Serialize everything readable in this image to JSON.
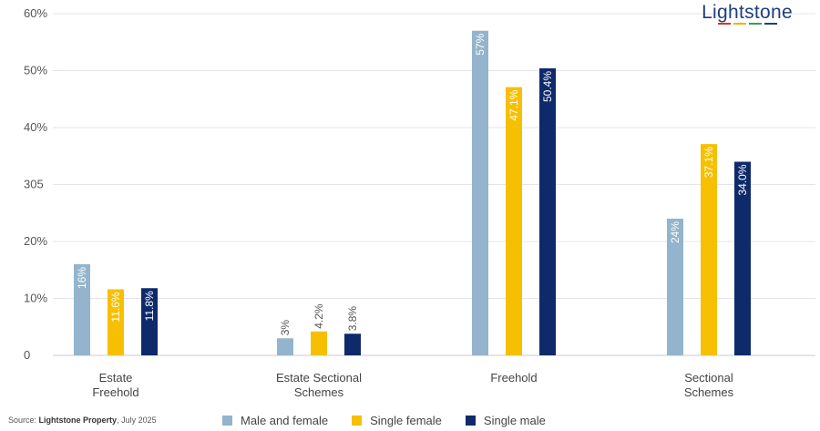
{
  "chart_data": {
    "type": "bar",
    "categories": [
      [
        "Estate",
        "Freehold"
      ],
      [
        "Estate Sectional",
        "Schemes"
      ],
      [
        "Freehold"
      ],
      [
        "Sectional",
        "Schemes"
      ]
    ],
    "series": [
      {
        "name": "Male and female",
        "color": "#93b4cc",
        "values": [
          16,
          3,
          57,
          24
        ],
        "labels": [
          "16%",
          "3%",
          "57%",
          "24%"
        ]
      },
      {
        "name": "Single female",
        "color": "#f6c000",
        "values": [
          11.6,
          4.2,
          47.1,
          37.1
        ],
        "labels": [
          "11.6%",
          "4.2%",
          "47.1%",
          "37.1%"
        ]
      },
      {
        "name": "Single male",
        "color": "#0f2a6b",
        "values": [
          11.8,
          3.8,
          50.4,
          34.0
        ],
        "labels": [
          "11.8%",
          "3.8%",
          "50.4%",
          "34.0%"
        ]
      }
    ],
    "y_ticks": [
      "0",
      "10%",
      "20%",
      "305",
      "40%",
      "50%",
      "60%"
    ],
    "ylim": [
      0,
      60
    ],
    "grid": true
  },
  "source": {
    "prefix": "Source:",
    "name": "Lightstone Property",
    "suffix": ", July 2025"
  },
  "logo": {
    "text": "Lightstone",
    "bar_colors": [
      "#d8352a",
      "#f2b100",
      "#36a04a",
      "#1f3f7a"
    ]
  }
}
